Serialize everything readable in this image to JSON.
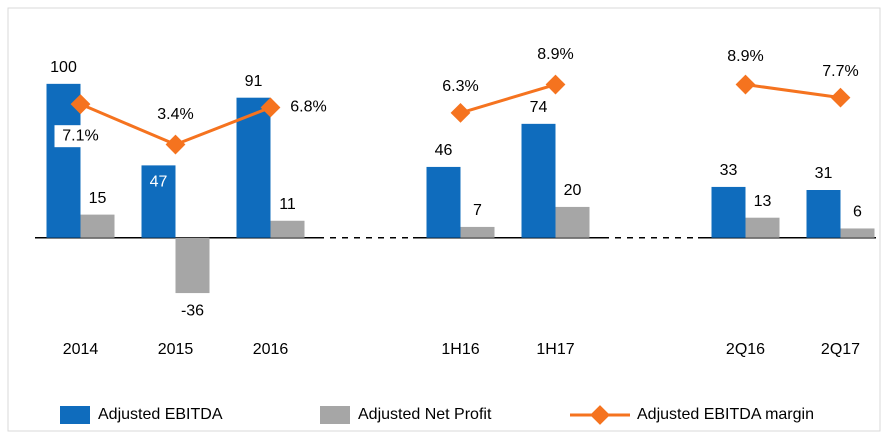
{
  "chart_data": {
    "type": "bar",
    "categories": [
      "2014",
      "2015",
      "2016",
      null,
      "1H16",
      "1H17",
      null,
      "2Q16",
      "2Q17"
    ],
    "series": [
      {
        "name": "Adjusted EBITDA",
        "color": "#0f6cbd",
        "values": [
          100,
          47,
          91,
          null,
          46,
          74,
          null,
          33,
          31
        ]
      },
      {
        "name": "Adjusted Net Profit",
        "color": "#a6a6a6",
        "values": [
          15,
          -36,
          11,
          null,
          7,
          20,
          null,
          13,
          6
        ]
      },
      {
        "name": "Adjusted EBITDA margin",
        "color": "#f5731f",
        "type": "line",
        "axis": "y2",
        "values": [
          7.1,
          3.4,
          6.8,
          null,
          6.3,
          8.9,
          null,
          8.9,
          7.7
        ],
        "value_labels": [
          "7.1%",
          "3.4%",
          "6.8%",
          null,
          "6.3%",
          "8.9%",
          null,
          "8.9%",
          "7.7%"
        ]
      }
    ],
    "ylim": [
      -60,
      135
    ],
    "y2lim": [
      -13.6,
      13.9
    ],
    "legend": "bottom"
  }
}
